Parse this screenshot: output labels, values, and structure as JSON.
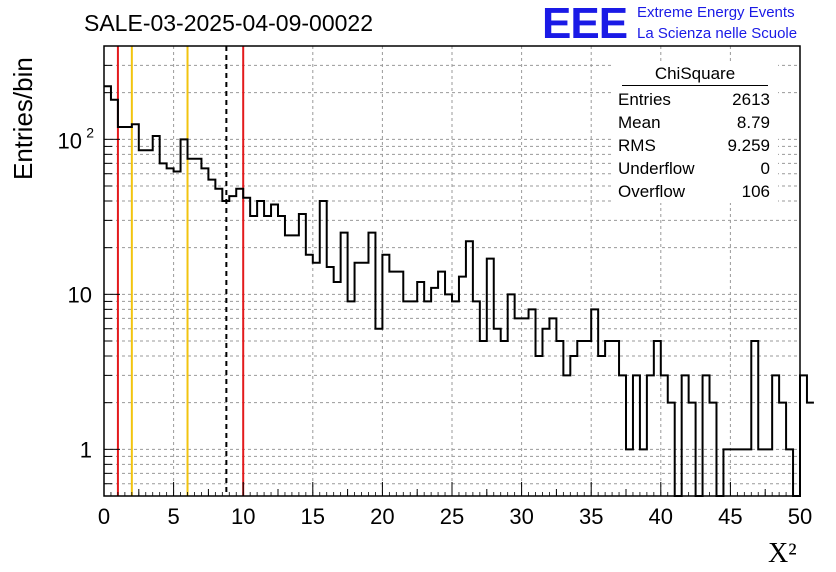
{
  "title": "SALE-03-2025-04-09-00022",
  "logo": {
    "mark": "EEE",
    "line1": "Extreme Energy Events",
    "line2": "La Scienza nelle Scuole",
    "color": "#1a1ae6"
  },
  "stats_box": {
    "name": "ChiSquare",
    "rows": [
      {
        "label": "Entries",
        "value": "2613"
      },
      {
        "label": "Mean",
        "value": "8.79"
      },
      {
        "label": "RMS",
        "value": "9.259"
      },
      {
        "label": "Underflow",
        "value": "0"
      },
      {
        "label": "Overflow",
        "value": "106"
      }
    ]
  },
  "chart_data": {
    "type": "bar",
    "style": "step-histogram",
    "ylabel": "Entries/bin",
    "xlabel": "X²",
    "xlim": [
      0,
      50
    ],
    "ylim": [
      0.5,
      400
    ],
    "y_scale": "log",
    "grid": true,
    "bin_width": 0.5,
    "x_ticks": [
      "0",
      "5",
      "10",
      "15",
      "20",
      "25",
      "30",
      "35",
      "40",
      "45",
      "50"
    ],
    "y_ticks": [
      {
        "value": 1,
        "label": "1"
      },
      {
        "value": 10,
        "label": "10"
      },
      {
        "value": 100,
        "label": "10",
        "exp": "2"
      }
    ],
    "values": [
      220,
      180,
      120,
      120,
      125,
      85,
      85,
      105,
      70,
      65,
      62,
      100,
      75,
      75,
      65,
      55,
      48,
      40,
      43,
      48,
      42,
      32,
      40,
      32,
      38,
      32,
      24,
      24,
      33,
      18,
      16,
      40,
      15,
      12,
      25,
      9,
      16,
      16,
      25,
      6,
      18,
      14,
      14,
      9,
      9,
      12,
      9,
      11,
      14,
      10,
      9,
      13,
      22,
      9,
      5,
      17,
      6,
      5,
      10,
      7,
      7,
      8,
      4,
      6,
      7,
      5,
      3,
      4,
      5,
      5,
      8,
      4,
      5,
      5,
      3,
      1,
      3,
      1,
      3,
      5,
      3,
      2,
      0.4,
      3,
      2,
      0.4,
      3,
      2,
      0.4,
      1,
      1,
      1,
      1,
      5,
      1,
      1,
      3,
      2,
      1,
      0.4,
      3,
      2
    ],
    "markers": [
      {
        "x": 1,
        "color": "#e31a1c",
        "style": "solid"
      },
      {
        "x": 2,
        "color": "#f2c40f",
        "style": "solid"
      },
      {
        "x": 6,
        "color": "#f2c40f",
        "style": "solid"
      },
      {
        "x": 8.79,
        "color": "#000000",
        "style": "dashed"
      },
      {
        "x": 10,
        "color": "#e31a1c",
        "style": "solid"
      }
    ]
  }
}
